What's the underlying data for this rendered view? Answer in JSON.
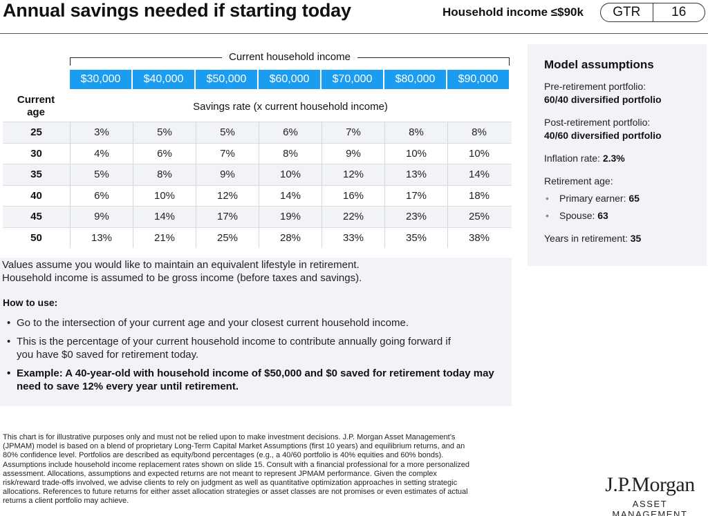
{
  "header": {
    "title": "Annual savings needed if starting today",
    "household_label": "Household income ≤$90k",
    "guide": "GTR",
    "page": "16"
  },
  "table": {
    "group_label": "Current household income",
    "incomes": [
      "$30,000",
      "$40,000",
      "$50,000",
      "$60,000",
      "$70,000",
      "$80,000",
      "$90,000"
    ],
    "age_header": [
      "Current",
      "age"
    ],
    "rate_header": "Savings rate (x current household income)",
    "rows": [
      {
        "age": "25",
        "values": [
          "3%",
          "5%",
          "5%",
          "6%",
          "7%",
          "8%",
          "8%"
        ]
      },
      {
        "age": "30",
        "values": [
          "4%",
          "6%",
          "7%",
          "8%",
          "9%",
          "10%",
          "10%"
        ]
      },
      {
        "age": "35",
        "values": [
          "5%",
          "8%",
          "9%",
          "10%",
          "12%",
          "13%",
          "14%"
        ]
      },
      {
        "age": "40",
        "values": [
          "6%",
          "10%",
          "12%",
          "14%",
          "16%",
          "17%",
          "18%"
        ]
      },
      {
        "age": "45",
        "values": [
          "9%",
          "14%",
          "17%",
          "19%",
          "22%",
          "23%",
          "25%"
        ]
      },
      {
        "age": "50",
        "values": [
          "13%",
          "21%",
          "25%",
          "28%",
          "33%",
          "35%",
          "38%"
        ]
      }
    ]
  },
  "notes": {
    "line1": "Values assume you would like to maintain an equivalent lifestyle in retirement.",
    "line2": "Household income is assumed to be gross income (before taxes and savings).",
    "how_to_title": "How to use:",
    "bullet1": "Go to the intersection of your current age and your closest current household income.",
    "bullet2a": "This is the percentage of your current household income to contribute annually going forward if",
    "bullet2b": "you have $0 saved for retirement today.",
    "bullet3a": "Example: A 40-year-old with household income of $50,000 and $0 saved for retirement today may",
    "bullet3b": "need to save 12% every year until retirement."
  },
  "assumptions": {
    "title": "Model assumptions",
    "pre_label": "Pre-retirement portfolio:",
    "pre_value": "60/40 diversified portfolio",
    "post_label": "Post-retirement portfolio:",
    "post_value": "40/60 diversified portfolio",
    "inflation_label": "Inflation rate: ",
    "inflation_value": "2.3%",
    "ret_age_label": "Retirement age:",
    "primary_label": "Primary earner: ",
    "primary_value": "65",
    "spouse_label": "Spouse: ",
    "spouse_value": "63",
    "years_label": "Years in retirement: ",
    "years_value": "35"
  },
  "disclaimer": [
    "This chart is for illustrative purposes only and must not be relied upon to make investment decisions. J.P. Morgan Asset Management’s",
    "(JPMAM) model is based on a blend of proprietary Long-Term Capital Market Assumptions (first 10 years) and equilibrium returns, and an",
    "80% confidence level. Portfolios are described as equity/bond percentages (e.g., a 40/60 portfolio is 40% equities and 60% bonds).",
    "Assumptions include household income replacement rates shown on slide 15. Consult with a financial professional for a more personalized",
    "assessment. Allocations, assumptions and expected returns are not meant to represent JPMAM performance. Given the complex",
    "risk/reward trade-offs involved, we advise clients to rely on judgment as well as quantitative optimization approaches in setting strategic",
    "allocations. References to future returns for either asset allocation strategies or asset classes are not promises or even estimates of actual",
    "returns a client portfolio may achieve."
  ],
  "logo": {
    "top": "J.P.Morgan",
    "bottom": "ASSET MANAGEMENT"
  }
}
